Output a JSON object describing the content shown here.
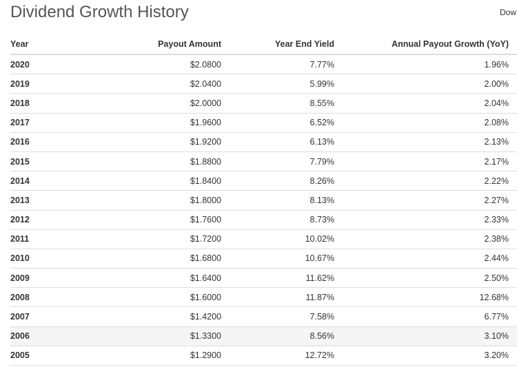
{
  "page": {
    "title": "Dividend Growth History",
    "download_label": "Dow"
  },
  "table": {
    "columns": [
      "Year",
      "Payout Amount",
      "Year End Yield",
      "Annual Payout Growth (YoY)"
    ],
    "rows": [
      {
        "year": "2020",
        "payout": "$2.0800",
        "yield": "7.77%",
        "growth": "1.96%"
      },
      {
        "year": "2019",
        "payout": "$2.0400",
        "yield": "5.99%",
        "growth": "2.00%"
      },
      {
        "year": "2018",
        "payout": "$2.0000",
        "yield": "8.55%",
        "growth": "2.04%"
      },
      {
        "year": "2017",
        "payout": "$1.9600",
        "yield": "6.52%",
        "growth": "2.08%"
      },
      {
        "year": "2016",
        "payout": "$1.9200",
        "yield": "6.13%",
        "growth": "2.13%"
      },
      {
        "year": "2015",
        "payout": "$1.8800",
        "yield": "7.79%",
        "growth": "2.17%"
      },
      {
        "year": "2014",
        "payout": "$1.8400",
        "yield": "8.26%",
        "growth": "2.22%"
      },
      {
        "year": "2013",
        "payout": "$1.8000",
        "yield": "8.13%",
        "growth": "2.27%"
      },
      {
        "year": "2012",
        "payout": "$1.7600",
        "yield": "8.73%",
        "growth": "2.33%"
      },
      {
        "year": "2011",
        "payout": "$1.7200",
        "yield": "10.02%",
        "growth": "2.38%"
      },
      {
        "year": "2010",
        "payout": "$1.6800",
        "yield": "10.67%",
        "growth": "2.44%"
      },
      {
        "year": "2009",
        "payout": "$1.6400",
        "yield": "11.62%",
        "growth": "2.50%"
      },
      {
        "year": "2008",
        "payout": "$1.6000",
        "yield": "11.87%",
        "growth": "12.68%"
      },
      {
        "year": "2007",
        "payout": "$1.4200",
        "yield": "7.58%",
        "growth": "6.77%"
      },
      {
        "year": "2006",
        "payout": "$1.3300",
        "yield": "8.56%",
        "growth": "3.10%"
      },
      {
        "year": "2005",
        "payout": "$1.2900",
        "yield": "12.72%",
        "growth": "3.20%"
      }
    ],
    "hovered_row_year": "2006"
  }
}
